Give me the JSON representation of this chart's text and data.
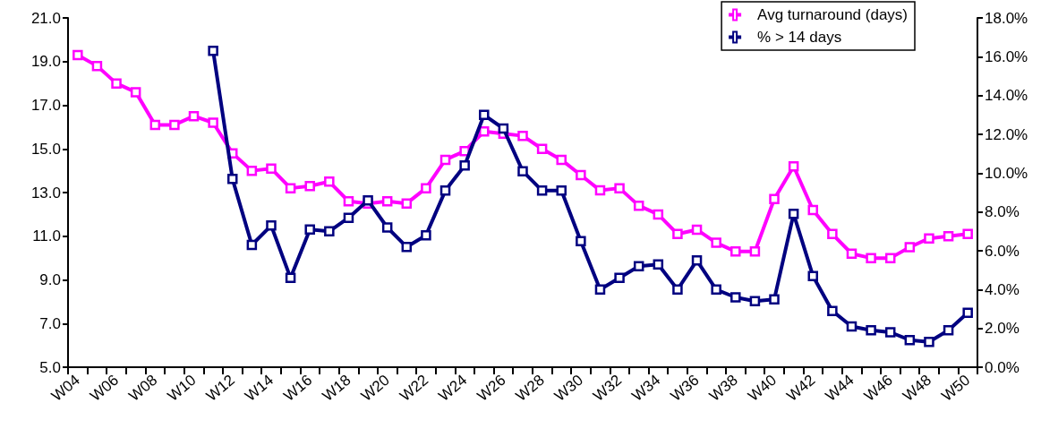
{
  "chart_data": {
    "type": "line",
    "categories": [
      "W04",
      null,
      "W06",
      null,
      "W08",
      null,
      "W10",
      null,
      "W12",
      null,
      "W14",
      null,
      "W16",
      null,
      "W18",
      null,
      "W20",
      null,
      "W22",
      null,
      "W24",
      null,
      "W26",
      null,
      "W28",
      null,
      "W30",
      null,
      "W32",
      null,
      "W34",
      null,
      "W36",
      null,
      "W38",
      null,
      "W40",
      null,
      "W42",
      null,
      "W44",
      null,
      "W46",
      null,
      "W48",
      null,
      "W50"
    ],
    "series": [
      {
        "name": "Avg turnaround (days)",
        "color": "#ff00ff",
        "values": [
          19.3,
          18.8,
          18.0,
          17.6,
          16.1,
          16.1,
          16.5,
          16.2,
          14.8,
          14.0,
          14.1,
          13.2,
          13.3,
          13.5,
          12.6,
          12.5,
          12.6,
          12.5,
          13.2,
          14.5,
          14.9,
          15.8,
          15.7,
          15.6,
          15.0,
          14.5,
          13.8,
          13.1,
          13.2,
          12.4,
          12.0,
          11.1,
          11.3,
          10.7,
          10.3,
          10.3,
          12.7,
          14.2,
          12.2,
          11.1,
          10.2,
          10.0,
          10.0,
          10.5,
          10.9,
          11.0,
          11.1
        ]
      },
      {
        "name": "% > 14 days",
        "color": "#000080",
        "axis": "y2",
        "values": [
          null,
          null,
          null,
          null,
          null,
          null,
          null,
          16.3,
          9.7,
          6.3,
          7.3,
          4.6,
          7.1,
          7.0,
          7.7,
          8.6,
          7.2,
          6.2,
          6.8,
          9.1,
          10.4,
          13.0,
          12.3,
          10.1,
          9.1,
          9.1,
          6.5,
          4.0,
          4.6,
          5.2,
          5.3,
          4.0,
          5.5,
          4.0,
          3.6,
          3.4,
          3.5,
          7.9,
          4.7,
          2.9,
          2.1,
          1.9,
          1.8,
          1.4,
          1.3,
          1.9,
          2.8
        ]
      }
    ],
    "ylim": [
      5,
      21
    ],
    "yticks": [
      {
        "value": 5,
        "label": "5.0"
      },
      {
        "value": 7,
        "label": "7.0"
      },
      {
        "value": 9,
        "label": "9.0"
      },
      {
        "value": 11,
        "label": "11.0"
      },
      {
        "value": 13,
        "label": "13.0"
      },
      {
        "value": 15,
        "label": "15.0"
      },
      {
        "value": 17,
        "label": "17.0"
      },
      {
        "value": 19,
        "label": "19.0"
      },
      {
        "value": 21,
        "label": "21.0"
      }
    ],
    "y2lim": [
      0,
      18
    ],
    "y2ticks": [
      {
        "value": 0,
        "label": "0.0%"
      },
      {
        "value": 2,
        "label": "2.0%"
      },
      {
        "value": 4,
        "label": "4.0%"
      },
      {
        "value": 6,
        "label": "6.0%"
      },
      {
        "value": 8,
        "label": "8.0%"
      },
      {
        "value": 10,
        "label": "10.0%"
      },
      {
        "value": 12,
        "label": "12.0%"
      },
      {
        "value": 14,
        "label": "14.0%"
      },
      {
        "value": 16,
        "label": "16.0%"
      },
      {
        "value": 18,
        "label": "18.0%"
      }
    ],
    "legend": "top right",
    "marker": "square",
    "line_style": "solid",
    "grid": false
  }
}
